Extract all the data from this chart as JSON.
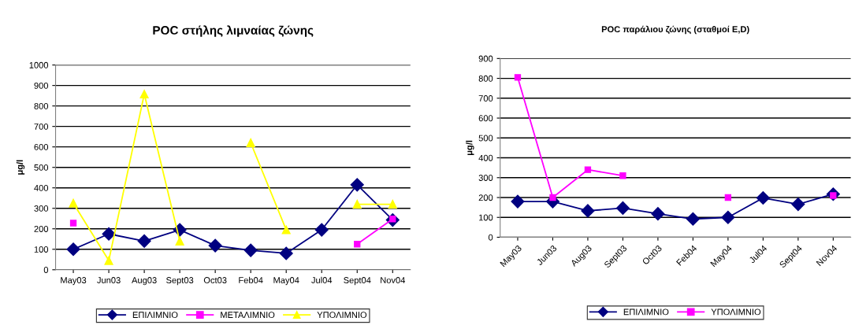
{
  "chart_data": [
    {
      "type": "line",
      "title": "POC στήλης λιμναίας ζώνης",
      "ylabel": "μg/l",
      "categories": [
        "May03",
        "Jun03",
        "Aug03",
        "Sept03",
        "Oct03",
        "Feb04",
        "May04",
        "Jul04",
        "Sept04",
        "Nov04"
      ],
      "series": [
        {
          "name": "ΕΠΙΛΙΜΝΙΟ",
          "color": "#000080",
          "marker": "diamond",
          "values": [
            100,
            175,
            140,
            195,
            118,
            95,
            80,
            195,
            415,
            243
          ]
        },
        {
          "name": "ΜΕΤΑΛΙΜΝΙΟ",
          "color": "#ff00ff",
          "marker": "square",
          "values": [
            228,
            null,
            null,
            null,
            null,
            null,
            null,
            null,
            125,
            248
          ]
        },
        {
          "name": "ΥΠΟΛΙΜΝΙΟ",
          "color": "#ffff00",
          "marker": "triangle",
          "values": [
            325,
            45,
            858,
            140,
            null,
            620,
            195,
            null,
            320,
            320
          ]
        }
      ],
      "ylim": [
        0,
        1000
      ],
      "yticks": [
        0,
        100,
        200,
        300,
        400,
        500,
        600,
        700,
        800,
        900,
        1000
      ],
      "grid": "y",
      "legend": "bottom"
    },
    {
      "type": "line",
      "title": "POC παράλιου ζώνης (σταθμοί E,D)",
      "ylabel": "μg/l",
      "categories": [
        "May03",
        "Jun03",
        "Aug03",
        "Sept03",
        "Oct03",
        "Feb04",
        "May04",
        "Jul04",
        "Sept04",
        "Nov04"
      ],
      "series": [
        {
          "name": "ΕΠΙΛΙΜΝΙΟ",
          "color": "#000080",
          "marker": "diamond",
          "values": [
            180,
            180,
            133,
            147,
            118,
            92,
            100,
            198,
            166,
            217
          ]
        },
        {
          "name": "ΥΠΟΛΙΜΝΙΟ",
          "color": "#ff00ff",
          "marker": "square",
          "values": [
            805,
            200,
            340,
            310,
            null,
            null,
            200,
            null,
            null,
            210
          ]
        }
      ],
      "ylim": [
        0,
        900
      ],
      "yticks": [
        0,
        100,
        200,
        300,
        400,
        500,
        600,
        700,
        800,
        900
      ],
      "grid": "y",
      "legend": "bottom"
    }
  ]
}
